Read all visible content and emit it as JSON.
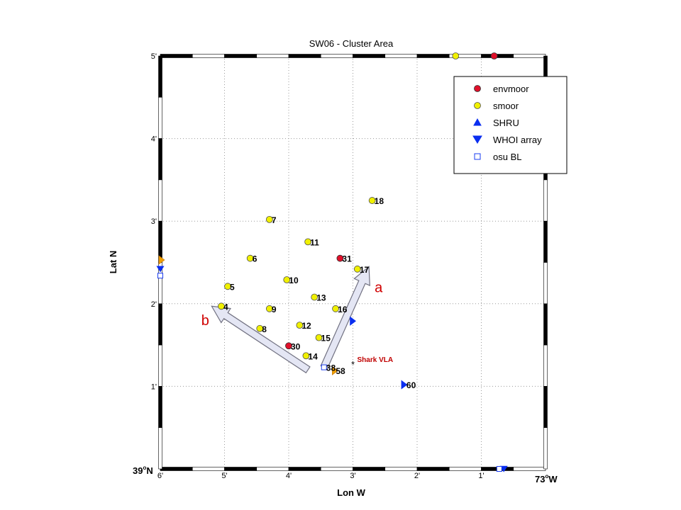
{
  "chart_data": {
    "type": "scatter",
    "title": "SW06 - Cluster Area",
    "xlabel": "Lon W",
    "ylabel": "Lat N",
    "xlim": [
      6,
      0
    ],
    "ylim": [
      0,
      5
    ],
    "x_ticks": [
      {
        "v": 6,
        "label": "6'"
      },
      {
        "v": 5,
        "label": "5'"
      },
      {
        "v": 4,
        "label": "4'"
      },
      {
        "v": 3,
        "label": "3'"
      },
      {
        "v": 2,
        "label": "2'"
      },
      {
        "v": 1,
        "label": "1'"
      }
    ],
    "y_ticks": [
      {
        "v": 1,
        "label": "1'"
      },
      {
        "v": 2,
        "label": "2'"
      },
      {
        "v": 3,
        "label": "3'"
      },
      {
        "v": 4,
        "label": "4'"
      },
      {
        "v": 5,
        "label": "5'"
      }
    ],
    "corner_labels": {
      "x0_deg": "39",
      "x0_suffix": "N",
      "x_end_deg": "73",
      "x_end_suffix": "W"
    },
    "grid": true,
    "legend_position": "top-right",
    "legend": [
      {
        "name": "envmoor",
        "marker": "circle",
        "color": "#e0102a",
        "edge": "#303030"
      },
      {
        "name": "smoor",
        "marker": "circle",
        "color": "#f0f000",
        "edge": "#505050"
      },
      {
        "name": "SHRU",
        "marker": "triangle-up",
        "color": "#0a2ef0",
        "edge": "#0a2ef0"
      },
      {
        "name": "WHOI array",
        "marker": "triangle-down",
        "color": "#0a2ef0",
        "edge": "#0a2ef0"
      },
      {
        "name": "osu BL",
        "marker": "square-open",
        "color": "#ffffff",
        "edge": "#1a3cf0"
      }
    ],
    "smoor": [
      {
        "x": 4.6,
        "y": 2.55,
        "label": "6"
      },
      {
        "x": 4.3,
        "y": 3.02,
        "label": "7"
      },
      {
        "x": 4.45,
        "y": 1.7,
        "label": "8"
      },
      {
        "x": 4.3,
        "y": 1.94,
        "label": "9"
      },
      {
        "x": 4.03,
        "y": 2.29,
        "label": "10"
      },
      {
        "x": 3.7,
        "y": 2.75,
        "label": "11"
      },
      {
        "x": 3.83,
        "y": 1.74,
        "label": "12"
      },
      {
        "x": 3.6,
        "y": 2.08,
        "label": "13"
      },
      {
        "x": 3.73,
        "y": 1.37,
        "label": "14"
      },
      {
        "x": 3.53,
        "y": 1.59,
        "label": "15"
      },
      {
        "x": 3.27,
        "y": 1.94,
        "label": "16"
      },
      {
        "x": 2.93,
        "y": 2.42,
        "label": "17"
      },
      {
        "x": 2.7,
        "y": 3.25,
        "label": "18"
      },
      {
        "x": 4.95,
        "y": 2.21,
        "label": "5"
      },
      {
        "x": 5.05,
        "y": 1.97,
        "label": "4"
      },
      {
        "x": 1.4,
        "y": 5.0,
        "label": ""
      }
    ],
    "envmoor": [
      {
        "x": 4.0,
        "y": 1.49,
        "label": "30"
      },
      {
        "x": 3.2,
        "y": 2.55,
        "label": "31"
      },
      {
        "x": 0.8,
        "y": 5.0,
        "label": ""
      }
    ],
    "shru": [
      {
        "x": 3.0,
        "y": 1.79,
        "label": ""
      },
      {
        "x": 2.2,
        "y": 1.02,
        "label": "60"
      }
    ],
    "orange_markers": [
      {
        "x": 6.0,
        "y": 2.53,
        "label": ""
      },
      {
        "x": 3.3,
        "y": 1.19,
        "label": "58"
      }
    ],
    "whoi_array": [
      {
        "x": 6.0,
        "y": 2.42,
        "label": ""
      },
      {
        "x": 0.65,
        "y": 0.0,
        "label": ""
      }
    ],
    "osu_bl": [
      {
        "x": 6.0,
        "y": 2.34,
        "label": ""
      },
      {
        "x": 3.45,
        "y": 1.23,
        "label": "38"
      },
      {
        "x": 0.72,
        "y": 0.0,
        "label": ""
      }
    ],
    "shark_vla": {
      "x": 3.0,
      "y": 1.27,
      "label": "Shark VLA"
    },
    "arrows": [
      {
        "label": "a",
        "from": [
          3.45,
          1.23
        ],
        "to": [
          2.75,
          2.45
        ],
        "label_at": [
          2.6,
          2.2
        ]
      },
      {
        "label": "b",
        "from": [
          3.7,
          1.2
        ],
        "to": [
          5.2,
          1.97
        ],
        "label_at": [
          5.3,
          1.8
        ]
      }
    ]
  }
}
